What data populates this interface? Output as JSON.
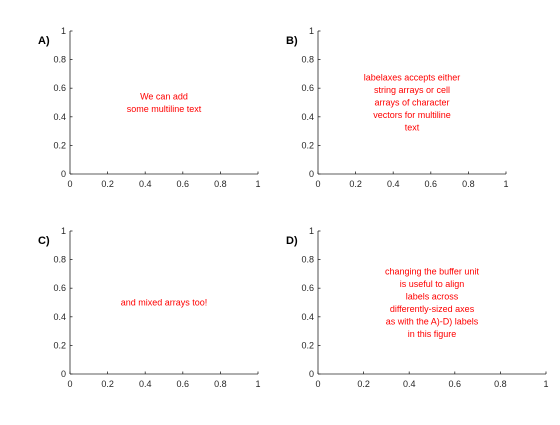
{
  "chart_data": [
    {
      "type": "scatter",
      "panel_label": "A)",
      "xlim": [
        0,
        1
      ],
      "ylim": [
        0,
        1
      ],
      "x_ticks": [
        "0",
        "0.2",
        "0.4",
        "0.6",
        "0.8",
        "1"
      ],
      "y_ticks": [
        "0",
        "0.2",
        "0.4",
        "0.6",
        "0.8",
        "1"
      ],
      "grid": false,
      "annotation": {
        "lines": [
          "We can add",
          "some multiline text"
        ],
        "x": 0.5,
        "y": 0.5,
        "color": "#ff0000"
      }
    },
    {
      "type": "scatter",
      "panel_label": "B)",
      "xlim": [
        0,
        1
      ],
      "ylim": [
        0,
        1
      ],
      "x_ticks": [
        "0",
        "0.2",
        "0.4",
        "0.6",
        "0.8",
        "1"
      ],
      "y_ticks": [
        "0",
        "0.2",
        "0.4",
        "0.6",
        "0.8",
        "1"
      ],
      "grid": false,
      "annotation": {
        "lines": [
          "labelaxes accepts either",
          "string arrays or cell",
          "arrays of character",
          "vectors for multiline",
          "text"
        ],
        "x": 0.5,
        "y": 0.5,
        "color": "#ff0000"
      }
    },
    {
      "type": "scatter",
      "panel_label": "C)",
      "xlim": [
        0,
        1
      ],
      "ylim": [
        0,
        1
      ],
      "x_ticks": [
        "0",
        "0.2",
        "0.4",
        "0.6",
        "0.8",
        "1"
      ],
      "y_ticks": [
        "0",
        "0.2",
        "0.4",
        "0.6",
        "0.8",
        "1"
      ],
      "grid": false,
      "annotation": {
        "lines": [
          "and mixed arrays too!"
        ],
        "x": 0.5,
        "y": 0.5,
        "color": "#ff0000"
      }
    },
    {
      "type": "scatter",
      "panel_label": "D)",
      "xlim": [
        0,
        1
      ],
      "ylim": [
        0,
        1
      ],
      "x_ticks": [
        "0",
        "0.2",
        "0.4",
        "0.6",
        "0.8",
        "1"
      ],
      "y_ticks": [
        "0",
        "0.2",
        "0.4",
        "0.6",
        "0.8",
        "1"
      ],
      "grid": false,
      "annotation": {
        "lines": [
          "changing the buffer unit",
          "is useful to align",
          "labels across",
          "differently-sized axes",
          "as with the A)-D) labels",
          "in this figure"
        ],
        "x": 0.5,
        "y": 0.5,
        "color": "#ff0000"
      }
    }
  ]
}
